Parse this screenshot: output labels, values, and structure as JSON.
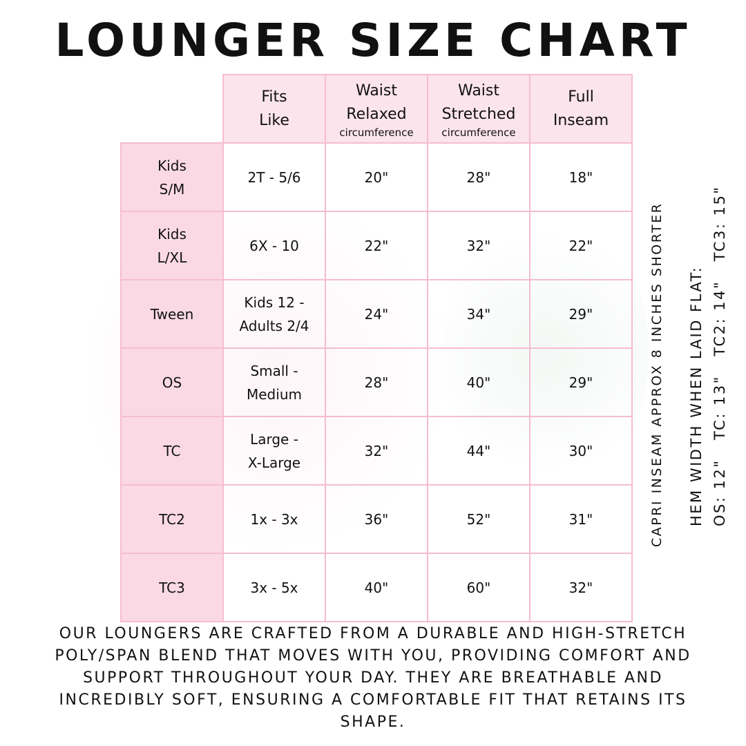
{
  "title": "LOUNGER SIZE CHART",
  "table": {
    "headers": [
      {
        "main": "Fits\nLike",
        "sub": ""
      },
      {
        "main": "Waist\nRelaxed",
        "sub": "circumference"
      },
      {
        "main": "Waist\nStretched",
        "sub": "circumference"
      },
      {
        "main": "Full\nInseam",
        "sub": ""
      }
    ],
    "rows": [
      {
        "size": "Kids\nS/M",
        "fits": "2T - 5/6",
        "relaxed": "20\"",
        "stretched": "28\"",
        "inseam": "18\""
      },
      {
        "size": "Kids\nL/XL",
        "fits": "6X - 10",
        "relaxed": "22\"",
        "stretched": "32\"",
        "inseam": "22\""
      },
      {
        "size": "Tween",
        "fits": "Kids 12 -\nAdults 2/4",
        "relaxed": "24\"",
        "stretched": "34\"",
        "inseam": "29\""
      },
      {
        "size": "OS",
        "fits": "Small -\nMedium",
        "relaxed": "28\"",
        "stretched": "40\"",
        "inseam": "29\""
      },
      {
        "size": "TC",
        "fits": "Large -\nX-Large",
        "relaxed": "32\"",
        "stretched": "44\"",
        "inseam": "30\""
      },
      {
        "size": "TC2",
        "fits": "1x - 3x",
        "relaxed": "36\"",
        "stretched": "52\"",
        "inseam": "31\""
      },
      {
        "size": "TC3",
        "fits": "3x - 5x",
        "relaxed": "40\"",
        "stretched": "60\"",
        "inseam": "32\""
      }
    ]
  },
  "side_notes": {
    "capri": "CAPRI INSEAM APPROX 8 INCHES SHORTER",
    "hem_title": "HEM WIDTH WHEN LAID FLAT:",
    "hem_values": "OS: 12\"   TC: 13\"   TC2: 14\"   TC3: 15\""
  },
  "footer": "Our loungers are crafted from a durable and high-stretch poly/span blend that moves with you, providing comfort and support throughout your day. They are breathable and incredibly soft, ensuring a comfortable fit that retains its shape.",
  "colors": {
    "border": "#f6bcd2",
    "header_fill": "#fce4ec",
    "size_fill": "#fad9e5"
  }
}
